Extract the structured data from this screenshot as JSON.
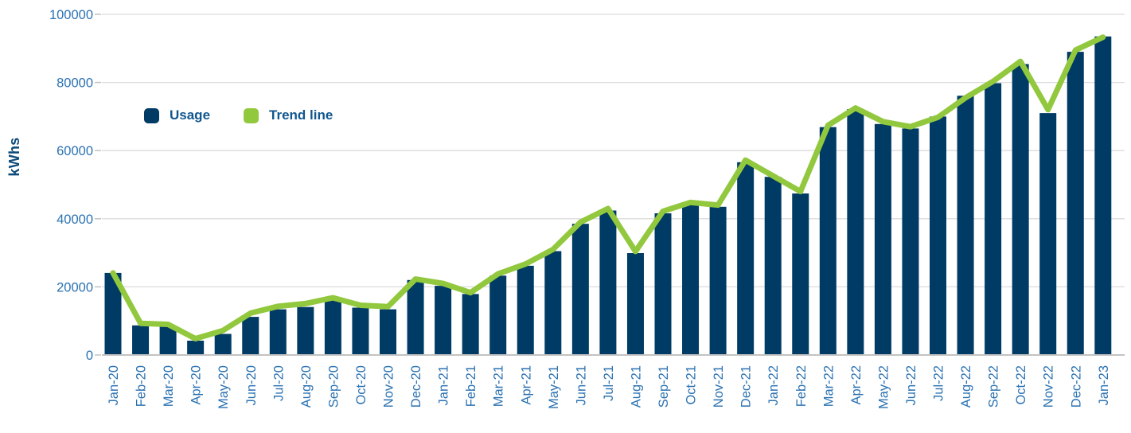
{
  "colors": {
    "background": "#FFFFFF",
    "bar": "#003B65",
    "trend": "#92C83E",
    "gridline": "#DCDCDC",
    "axis_line": "#C2C2C2",
    "tick_label": "#2B72B2",
    "legend_text": "#10568F",
    "axis_title": "#0B4A7A"
  },
  "chart_data": {
    "type": "bar",
    "title": "",
    "xlabel": "",
    "ylabel": "kWhs",
    "ylim": [
      0,
      100000
    ],
    "yticks": [
      0,
      20000,
      40000,
      60000,
      80000,
      100000
    ],
    "grid": true,
    "legend_position": "top-left-inside",
    "categories": [
      "Jan-20",
      "Feb-20",
      "Mar-20",
      "Apr-20",
      "May-20",
      "Jun-20",
      "Jul-20",
      "Aug-20",
      "Sep-20",
      "Oct-20",
      "Nov-20",
      "Dec-20",
      "Jan-21",
      "Feb-21",
      "Mar-21",
      "Apr-21",
      "May-21",
      "Jun-21",
      "Jul-21",
      "Aug-21",
      "Sep-21",
      "Oct-21",
      "Nov-21",
      "Dec-21",
      "Jan-22",
      "Feb-22",
      "Mar-22",
      "Apr-22",
      "May-22",
      "Jun-22",
      "Jul-22",
      "Aug-22",
      "Sep-22",
      "Oct-22",
      "Nov-22",
      "Dec-22",
      "Jan-23"
    ],
    "series": [
      {
        "name": "Usage",
        "type": "bar",
        "color": "#003B65",
        "values": [
          24100,
          8700,
          8300,
          4200,
          6200,
          11200,
          13400,
          14100,
          16000,
          13900,
          13400,
          22000,
          20300,
          17900,
          23300,
          26200,
          30500,
          38500,
          42400,
          29900,
          41600,
          44200,
          43500,
          56600,
          52300,
          47400,
          66900,
          72200,
          67800,
          66500,
          70000,
          76100,
          79800,
          85400,
          71000,
          89000,
          93500
        ]
      },
      {
        "name": "Trend line",
        "type": "line",
        "color": "#92C83E",
        "values": [
          24100,
          9300,
          9000,
          4800,
          7200,
          12300,
          14300,
          15100,
          16800,
          14600,
          14200,
          22300,
          21000,
          18300,
          23800,
          26700,
          31000,
          39000,
          43000,
          30400,
          42200,
          44800,
          44000,
          57200,
          52600,
          48000,
          67400,
          72500,
          68500,
          67000,
          69800,
          75500,
          80300,
          86200,
          72000,
          89500,
          93300
        ]
      }
    ]
  }
}
